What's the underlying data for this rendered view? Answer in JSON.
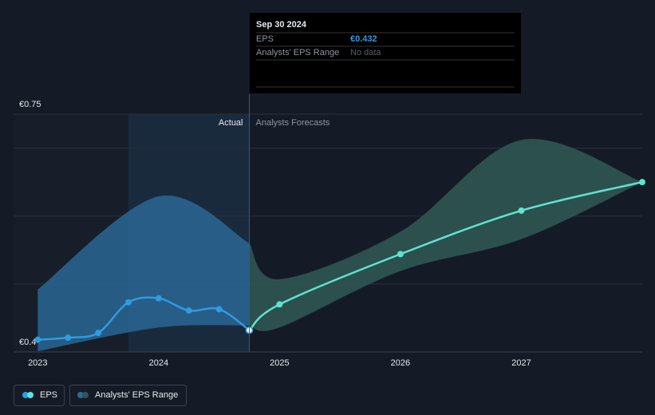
{
  "chart_data": {
    "type": "line",
    "xlim": [
      2022.8,
      2028
    ],
    "xticks": [
      2023,
      2024,
      2025,
      2026,
      2027
    ],
    "ylim": [
      0.4,
      0.75
    ],
    "yticks": [
      {
        "value": 0.4,
        "label": "€0.4"
      },
      {
        "value": 0.5,
        "label": null
      },
      {
        "value": 0.6,
        "label": null
      },
      {
        "value": 0.7,
        "label": null
      },
      {
        "value": 0.75,
        "label": "€0.75"
      }
    ],
    "grid": true,
    "divider_x": 2024.75,
    "highlight": [
      2023.75,
      2024.75
    ],
    "actual_label": "Actual",
    "forecast_label": "Analysts Forecasts",
    "series": [
      {
        "name": "EPS",
        "color": "#2f9be0",
        "forecast_color": "#5ee3cf",
        "x": [
          2023,
          2023.25,
          2023.5,
          2023.75,
          2024,
          2024.25,
          2024.5,
          2024.75,
          2025,
          2026,
          2027,
          2028
        ],
        "values": [
          0.418,
          0.421,
          0.428,
          0.473,
          0.479,
          0.461,
          0.463,
          0.432,
          0.47,
          0.544,
          0.608,
          0.65
        ]
      },
      {
        "name": "Analysts' EPS Range",
        "color": "#2b6a9a",
        "forecast_color": "#2f5753",
        "x": [
          2023,
          2024,
          2024.75,
          2025,
          2026,
          2027,
          2028
        ],
        "high": [
          0.492,
          0.629,
          0.56,
          0.507,
          0.577,
          0.712,
          0.65
        ],
        "low": [
          0.401,
          0.436,
          0.439,
          0.436,
          0.519,
          0.566,
          0.65
        ]
      }
    ],
    "tooltip": {
      "title": "Sep 30 2024",
      "eps_label": "EPS",
      "eps_value": "€0.432",
      "range_label": "Analysts' EPS Range",
      "range_value": "No data"
    }
  }
}
